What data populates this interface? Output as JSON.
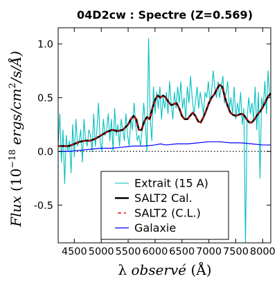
{
  "chart_data": {
    "type": "line",
    "title": "04D2cw : Spectre (Z=0.569)",
    "xlabel": "λ observé (Å)",
    "ylabel": "Flux (10^-18 ergs/cm^2/s/Å)",
    "ylabel_parts": {
      "flux": "Flux",
      "open": " (10",
      "exp": "−18",
      "units": " ergs/cm",
      "sq": "2",
      "close": "/s/Å)"
    },
    "xlabel_parts": {
      "lambda": "λ",
      "observe": " observé ",
      "unit": "(Å)"
    },
    "xlim": [
      4200,
      8150
    ],
    "ylim": [
      -0.85,
      1.15
    ],
    "x_ticks": [
      4500,
      5000,
      5500,
      6000,
      6500,
      7000,
      7500,
      8000
    ],
    "x_tick_labels": [
      "4500",
      "5000",
      "5500",
      "6000",
      "6500",
      "7000",
      "7500",
      "8000"
    ],
    "y_ticks": [
      1.0,
      0.5,
      0.0,
      -0.5
    ],
    "y_tick_labels": [
      "1.0",
      "0.5",
      "0.0",
      "-0.5"
    ],
    "reference_line": {
      "y": 0.0,
      "style": "dotted"
    },
    "legend_position": "lower-center",
    "colors": {
      "extrait": "#00bfbf",
      "salt2_cal": "#000000",
      "salt2_cl": "#ff0000",
      "galaxie": "#0000ff"
    },
    "series": [
      {
        "name": "Extrait (15 A)",
        "style": "noisy-cyan",
        "x": [
          4200,
          4230,
          4260,
          4290,
          4320,
          4350,
          4380,
          4410,
          4440,
          4470,
          4500,
          4530,
          4560,
          4590,
          4620,
          4650,
          4680,
          4710,
          4740,
          4770,
          4800,
          4830,
          4860,
          4890,
          4920,
          4950,
          4980,
          5010,
          5040,
          5070,
          5100,
          5130,
          5160,
          5190,
          5220,
          5250,
          5280,
          5310,
          5340,
          5370,
          5400,
          5430,
          5460,
          5490,
          5520,
          5550,
          5580,
          5610,
          5640,
          5670,
          5700,
          5730,
          5760,
          5790,
          5820,
          5850,
          5880,
          5910,
          5940,
          5970,
          6000,
          6030,
          6060,
          6090,
          6120,
          6150,
          6180,
          6210,
          6240,
          6270,
          6300,
          6330,
          6360,
          6390,
          6420,
          6450,
          6480,
          6510,
          6540,
          6570,
          6600,
          6630,
          6660,
          6690,
          6720,
          6750,
          6780,
          6810,
          6840,
          6870,
          6900,
          6930,
          6960,
          6990,
          7020,
          7050,
          7080,
          7110,
          7140,
          7170,
          7200,
          7230,
          7260,
          7290,
          7320,
          7350,
          7380,
          7410,
          7440,
          7470,
          7500,
          7530,
          7560,
          7590,
          7620,
          7650,
          7680,
          7710,
          7740,
          7770,
          7800,
          7830,
          7860,
          7890,
          7920,
          7950,
          7980,
          8010,
          8040,
          8070,
          8100,
          8130
        ],
        "y": [
          0.05,
          0.35,
          -0.1,
          0.2,
          -0.3,
          0.15,
          0.0,
          0.1,
          -0.2,
          0.25,
          -0.05,
          0.3,
          0.05,
          0.1,
          0.2,
          -0.1,
          0.3,
          0.1,
          0.05,
          0.2,
          0.15,
          0.0,
          0.35,
          0.05,
          0.2,
          0.45,
          0.1,
          0.0,
          0.3,
          0.15,
          0.2,
          0.35,
          0.1,
          0.3,
          0.0,
          0.4,
          0.15,
          0.25,
          0.05,
          0.3,
          0.2,
          0.1,
          0.35,
          0.15,
          0.05,
          0.3,
          0.2,
          0.45,
          0.25,
          0.1,
          0.15,
          0.05,
          0.2,
          0.45,
          0.25,
          0.0,
          1.05,
          0.3,
          0.1,
          0.6,
          0.35,
          0.55,
          0.4,
          0.6,
          0.3,
          0.5,
          0.4,
          0.55,
          0.35,
          0.65,
          0.45,
          0.3,
          0.55,
          0.4,
          0.6,
          0.45,
          0.65,
          0.4,
          0.5,
          0.3,
          0.6,
          0.45,
          0.7,
          0.5,
          0.35,
          0.45,
          0.6,
          0.4,
          0.55,
          0.45,
          0.35,
          0.55,
          0.5,
          0.65,
          0.45,
          0.55,
          0.75,
          0.6,
          0.5,
          0.65,
          0.5,
          0.6,
          0.7,
          0.45,
          0.55,
          0.65,
          0.4,
          0.5,
          0.35,
          0.6,
          0.3,
          0.45,
          0.35,
          0.55,
          0.25,
          0.4,
          -0.85,
          0.3,
          0.5,
          0.35,
          0.45,
          0.3,
          0.6,
          0.2,
          0.55,
          -0.25,
          0.5,
          0.4,
          0.65,
          0.35,
          0.75,
          0.5
        ]
      },
      {
        "name": "SALT2 Cal.",
        "style": "thick-black",
        "x": [
          4200,
          4300,
          4400,
          4500,
          4600,
          4700,
          4800,
          4900,
          5000,
          5100,
          5200,
          5300,
          5400,
          5500,
          5550,
          5600,
          5650,
          5700,
          5750,
          5800,
          5850,
          5900,
          5950,
          6000,
          6050,
          6100,
          6150,
          6200,
          6250,
          6300,
          6350,
          6400,
          6450,
          6500,
          6550,
          6600,
          6650,
          6700,
          6750,
          6800,
          6850,
          6900,
          6950,
          7000,
          7050,
          7100,
          7150,
          7200,
          7250,
          7300,
          7350,
          7400,
          7450,
          7500,
          7550,
          7600,
          7650,
          7700,
          7750,
          7800,
          7850,
          7900,
          7950,
          8000,
          8050,
          8100,
          8150
        ],
        "y": [
          0.05,
          0.05,
          0.05,
          0.07,
          0.09,
          0.1,
          0.1,
          0.12,
          0.15,
          0.18,
          0.2,
          0.19,
          0.2,
          0.25,
          0.3,
          0.33,
          0.3,
          0.2,
          0.2,
          0.28,
          0.32,
          0.3,
          0.4,
          0.48,
          0.52,
          0.5,
          0.52,
          0.5,
          0.46,
          0.43,
          0.44,
          0.45,
          0.4,
          0.33,
          0.3,
          0.3,
          0.33,
          0.36,
          0.33,
          0.28,
          0.27,
          0.32,
          0.38,
          0.45,
          0.5,
          0.53,
          0.58,
          0.62,
          0.6,
          0.5,
          0.42,
          0.36,
          0.34,
          0.33,
          0.34,
          0.35,
          0.34,
          0.3,
          0.27,
          0.27,
          0.3,
          0.34,
          0.37,
          0.41,
          0.46,
          0.51,
          0.54
        ]
      },
      {
        "name": "SALT2 (C.L.)",
        "style": "dashed-red",
        "x": [
          4200,
          4300,
          4400,
          4500,
          4600,
          4700,
          4800,
          4900,
          5000,
          5100,
          5200,
          5300,
          5400,
          5500,
          5550,
          5600,
          5650,
          5700,
          5750,
          5800,
          5850,
          5900,
          5950,
          6000,
          6050,
          6100,
          6150,
          6200,
          6250,
          6300,
          6350,
          6400,
          6450,
          6500,
          6550,
          6600,
          6650,
          6700,
          6750,
          6800,
          6850,
          6900,
          6950,
          7000,
          7050,
          7100,
          7150,
          7200,
          7250,
          7300,
          7350,
          7400,
          7450,
          7500,
          7550,
          7600,
          7650,
          7700,
          7750,
          7800,
          7850,
          7900,
          7950,
          8000,
          8050,
          8100,
          8150
        ],
        "y": [
          0.05,
          0.05,
          0.05,
          0.07,
          0.09,
          0.1,
          0.1,
          0.12,
          0.15,
          0.18,
          0.2,
          0.19,
          0.2,
          0.25,
          0.3,
          0.33,
          0.3,
          0.2,
          0.2,
          0.28,
          0.32,
          0.3,
          0.4,
          0.48,
          0.52,
          0.5,
          0.52,
          0.5,
          0.46,
          0.43,
          0.44,
          0.45,
          0.4,
          0.33,
          0.3,
          0.3,
          0.33,
          0.36,
          0.33,
          0.28,
          0.27,
          0.32,
          0.38,
          0.45,
          0.5,
          0.53,
          0.58,
          0.62,
          0.6,
          0.5,
          0.42,
          0.36,
          0.34,
          0.33,
          0.34,
          0.35,
          0.34,
          0.3,
          0.27,
          0.27,
          0.3,
          0.34,
          0.37,
          0.41,
          0.46,
          0.51,
          0.54
        ]
      },
      {
        "name": "Galaxie",
        "style": "thin-blue",
        "x": [
          4200,
          4400,
          4600,
          4800,
          5000,
          5200,
          5400,
          5600,
          5800,
          6000,
          6100,
          6200,
          6400,
          6600,
          6800,
          7000,
          7200,
          7400,
          7600,
          7800,
          8000,
          8150
        ],
        "y": [
          0.0,
          0.0,
          0.01,
          0.02,
          0.03,
          0.03,
          0.04,
          0.05,
          0.05,
          0.06,
          0.07,
          0.06,
          0.07,
          0.07,
          0.08,
          0.09,
          0.09,
          0.08,
          0.08,
          0.07,
          0.06,
          0.06
        ]
      }
    ]
  }
}
